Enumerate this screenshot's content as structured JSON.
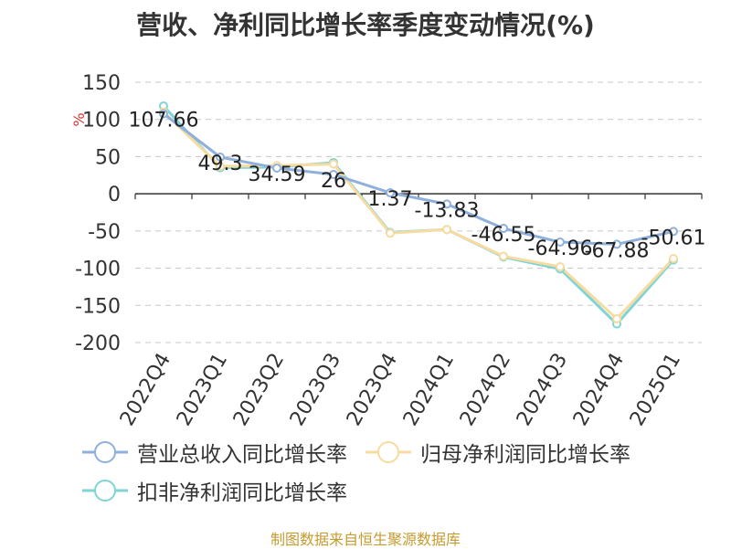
{
  "title": "营收、净利同比增长率季度变动情况(%)",
  "source": "制图数据来自恒生聚源数据库",
  "chart_data": {
    "type": "line",
    "title": "营收、净利同比增长率季度变动情况(%)",
    "ylabel": "%",
    "xlabel": "",
    "ylim": [
      -200,
      150
    ],
    "yticks": [
      150,
      100,
      50,
      0,
      -50,
      -100,
      -150,
      -200
    ],
    "grid": true,
    "legend_position": "bottom",
    "categories": [
      "2022Q4",
      "2023Q1",
      "2023Q2",
      "2023Q3",
      "2023Q4",
      "2024Q1",
      "2024Q2",
      "2024Q3",
      "2024Q4",
      "2025Q1"
    ],
    "series": [
      {
        "name": "营业总收入同比增长率",
        "color": "#8fb0dc",
        "values": [
          107.66,
          49.3,
          34.59,
          26,
          1.37,
          -13.83,
          -46.55,
          -64.96,
          -67.88,
          -50.61
        ],
        "labels": [
          "107.66",
          "49.3",
          "34.59",
          "26",
          "1.37",
          "-13.83",
          "-46.55",
          "-64.96",
          "-67.88",
          "-50.61"
        ]
      },
      {
        "name": "归母净利润同比增长率",
        "color": "#f7dba0",
        "values": [
          110,
          37,
          38,
          40,
          -53,
          -48,
          -84,
          -98,
          -168,
          -87
        ]
      },
      {
        "name": "扣非净利润同比增长率",
        "color": "#7fd4d6",
        "values": [
          118,
          35,
          36,
          42,
          -52,
          -48,
          -85,
          -101,
          -175,
          -89
        ]
      }
    ]
  }
}
